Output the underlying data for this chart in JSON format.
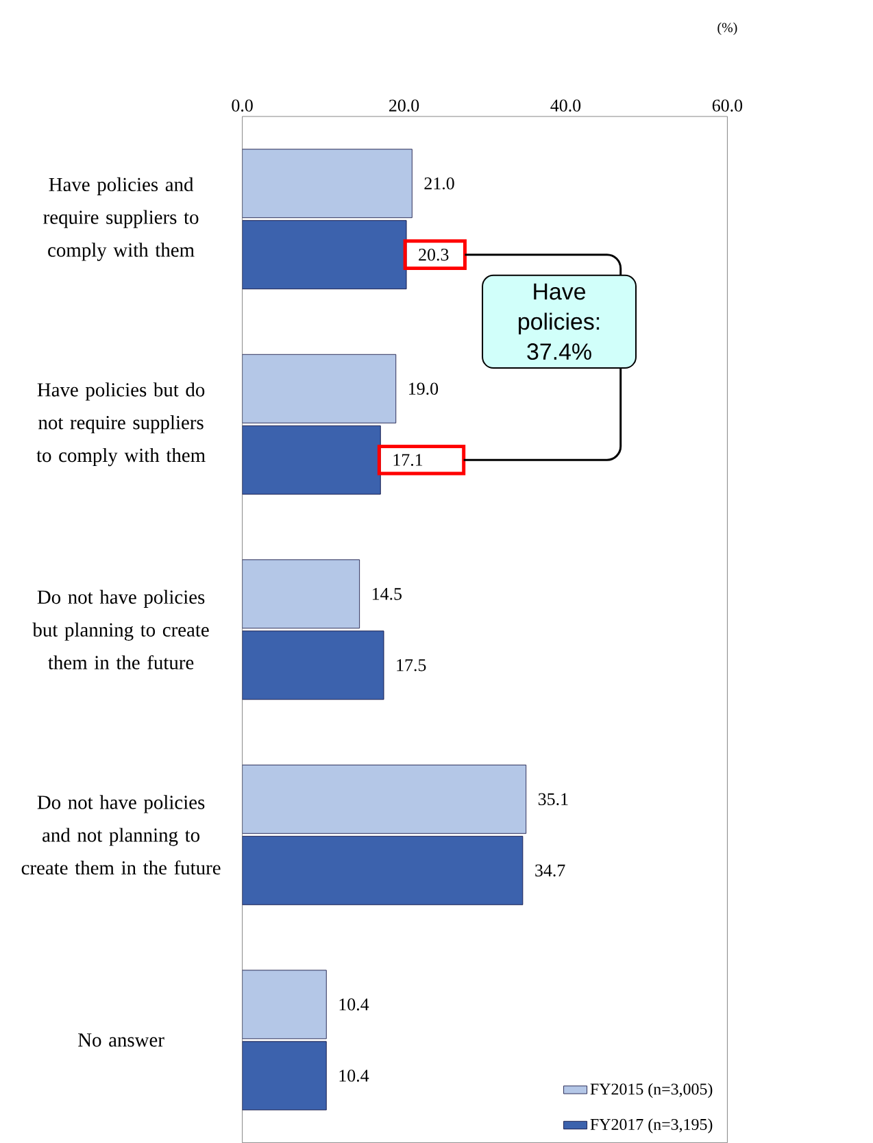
{
  "chart_data": {
    "type": "bar",
    "orientation": "horizontal",
    "categories": [
      "Have policies and require suppliers to comply with them",
      "Have policies but do not require suppliers to comply with them",
      "Do not have policies but planning to create them in the future",
      "Do not have policies and not planning to create them in the future",
      "No answer"
    ],
    "series": [
      {
        "name": "FY2015 (n=3,005)",
        "color": "#b4c7e7",
        "values": [
          21.0,
          19.0,
          14.5,
          35.1,
          10.4
        ],
        "value_labels": [
          "21.0",
          "19.0",
          "14.5",
          "35.1",
          "10.4"
        ]
      },
      {
        "name": "FY2017 (n=3,195)",
        "color": "#3c62ad",
        "values": [
          20.3,
          17.1,
          17.5,
          34.7,
          10.4
        ],
        "value_labels": [
          "20.3",
          "17.1",
          "17.5",
          "34.7",
          "10.4"
        ]
      }
    ],
    "xlim": [
      0,
      60
    ],
    "xticks": [
      {
        "value": 0,
        "label": "0.0"
      },
      {
        "value": 20,
        "label": "20.0"
      },
      {
        "value": 40,
        "label": "40.0"
      },
      {
        "value": 60,
        "label": "60.0"
      }
    ],
    "annotations": [
      "(%)",
      "Have policies: 37.4%"
    ],
    "legend": "bottom right",
    "grid": false
  }
}
